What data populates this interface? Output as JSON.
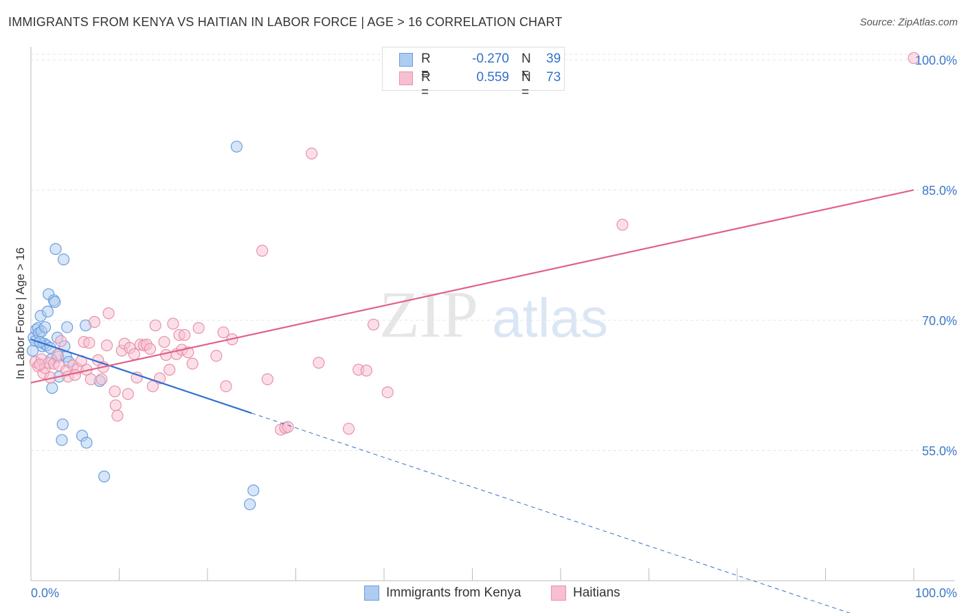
{
  "title": "IMMIGRANTS FROM KENYA VS HAITIAN IN LABOR FORCE | AGE > 16 CORRELATION CHART",
  "source": "Source: ZipAtlas.com",
  "legend": {
    "rows": [
      {
        "r_label": "R =",
        "r_value": "-0.270",
        "n_label": "N =",
        "n_value": "39"
      },
      {
        "r_label": "R =",
        "r_value": "0.559",
        "n_label": "N =",
        "n_value": "73"
      }
    ]
  },
  "bottom_legend": {
    "kenya": "Immigrants from Kenya",
    "haitians": "Haitians"
  },
  "watermark": {
    "zip": "ZIP",
    "atlas": "atlas"
  },
  "colors": {
    "kenya_fill": "#aecbf0",
    "kenya_stroke": "#6a9ee0",
    "kenya_line": "#2f6fcf",
    "haiti_fill": "#f7bfd0",
    "haiti_stroke": "#e890ab",
    "haiti_line": "#e0608a",
    "axis_label": "#3a78c8",
    "grid": "#e3e3e3"
  },
  "chart_data": {
    "type": "scatter",
    "title": "IMMIGRANTS FROM KENYA VS HAITIAN IN LABOR FORCE | AGE > 16 CORRELATION CHART",
    "xlabel": "",
    "ylabel": "In Labor Force | Age > 16",
    "xlim": [
      0,
      100
    ],
    "ylim": [
      40,
      101.5
    ],
    "x_tick_labels": [
      "0.0%",
      "100.0%"
    ],
    "y_ticks": [
      55,
      70,
      85,
      100
    ],
    "y_tick_labels": [
      "55.0%",
      "70.0%",
      "85.0%",
      "100.0%"
    ],
    "series": [
      {
        "name": "Immigrants from Kenya",
        "R": -0.27,
        "N": 39,
        "trend": {
          "x0": 0,
          "y0": 67.8,
          "x1": 25,
          "y1": 59.3,
          "dash_to_x": 100
        },
        "points": [
          [
            0.3,
            68.0
          ],
          [
            0.5,
            67.6
          ],
          [
            0.6,
            68.9
          ],
          [
            0.8,
            69.1
          ],
          [
            0.9,
            68.5
          ],
          [
            1.1,
            70.5
          ],
          [
            1.2,
            68.7
          ],
          [
            1.3,
            67.0
          ],
          [
            1.5,
            67.3
          ],
          [
            1.6,
            69.2
          ],
          [
            1.8,
            67.1
          ],
          [
            1.9,
            71.0
          ],
          [
            2.0,
            73.0
          ],
          [
            2.2,
            66.8
          ],
          [
            2.4,
            62.2
          ],
          [
            2.6,
            72.3
          ],
          [
            2.7,
            72.1
          ],
          [
            2.8,
            78.2
          ],
          [
            3.0,
            68.0
          ],
          [
            3.1,
            65.8
          ],
          [
            3.2,
            63.5
          ],
          [
            3.5,
            56.2
          ],
          [
            3.6,
            58.0
          ],
          [
            3.7,
            77.0
          ],
          [
            3.8,
            67.0
          ],
          [
            4.0,
            65.8
          ],
          [
            4.1,
            69.2
          ],
          [
            4.3,
            65.2
          ],
          [
            5.8,
            56.7
          ],
          [
            6.2,
            69.4
          ],
          [
            6.3,
            55.9
          ],
          [
            7.8,
            63.0
          ],
          [
            8.3,
            52.0
          ],
          [
            23.3,
            90.0
          ],
          [
            24.8,
            48.8
          ],
          [
            25.2,
            50.4
          ],
          [
            0.2,
            66.5
          ],
          [
            1.0,
            67.5
          ],
          [
            2.3,
            65.5
          ]
        ]
      },
      {
        "name": "Haitians",
        "R": 0.559,
        "N": 73,
        "trend": {
          "x0": 0,
          "y0": 62.8,
          "x1": 100,
          "y1": 85.0
        },
        "points": [
          [
            0.5,
            65.2
          ],
          [
            0.8,
            64.7
          ],
          [
            1.2,
            65.5
          ],
          [
            1.4,
            63.9
          ],
          [
            1.6,
            64.5
          ],
          [
            2.0,
            65.1
          ],
          [
            2.2,
            63.4
          ],
          [
            2.6,
            65.0
          ],
          [
            3.2,
            64.8
          ],
          [
            3.4,
            67.6
          ],
          [
            4.0,
            64.2
          ],
          [
            4.2,
            63.5
          ],
          [
            4.8,
            64.8
          ],
          [
            5.3,
            64.4
          ],
          [
            5.7,
            65.3
          ],
          [
            6.0,
            67.5
          ],
          [
            6.3,
            64.3
          ],
          [
            6.6,
            67.4
          ],
          [
            6.8,
            63.2
          ],
          [
            7.2,
            69.8
          ],
          [
            7.6,
            65.4
          ],
          [
            8.0,
            63.2
          ],
          [
            8.2,
            64.6
          ],
          [
            8.6,
            67.1
          ],
          [
            8.8,
            70.8
          ],
          [
            9.5,
            61.8
          ],
          [
            9.6,
            60.2
          ],
          [
            9.8,
            59.0
          ],
          [
            10.3,
            66.5
          ],
          [
            10.6,
            67.3
          ],
          [
            11.0,
            61.5
          ],
          [
            11.2,
            66.8
          ],
          [
            11.7,
            66.1
          ],
          [
            12.0,
            63.4
          ],
          [
            12.4,
            67.2
          ],
          [
            12.8,
            67.1
          ],
          [
            13.1,
            67.2
          ],
          [
            13.5,
            66.7
          ],
          [
            13.8,
            62.4
          ],
          [
            14.1,
            69.4
          ],
          [
            14.6,
            63.3
          ],
          [
            15.1,
            67.5
          ],
          [
            15.3,
            66.0
          ],
          [
            15.7,
            64.3
          ],
          [
            16.1,
            69.6
          ],
          [
            16.5,
            66.1
          ],
          [
            16.8,
            68.3
          ],
          [
            17.1,
            66.6
          ],
          [
            17.4,
            68.3
          ],
          [
            17.8,
            66.3
          ],
          [
            18.3,
            65.0
          ],
          [
            19.0,
            69.1
          ],
          [
            21.0,
            65.9
          ],
          [
            21.8,
            68.6
          ],
          [
            22.1,
            62.4
          ],
          [
            22.8,
            67.8
          ],
          [
            26.2,
            78.0
          ],
          [
            26.8,
            63.2
          ],
          [
            28.3,
            57.4
          ],
          [
            28.8,
            57.6
          ],
          [
            29.1,
            57.7
          ],
          [
            31.8,
            89.2
          ],
          [
            32.6,
            65.1
          ],
          [
            36.0,
            57.5
          ],
          [
            37.1,
            64.3
          ],
          [
            38.0,
            64.2
          ],
          [
            38.8,
            69.5
          ],
          [
            40.4,
            61.7
          ],
          [
            67.0,
            81.0
          ],
          [
            100.0,
            100.2
          ],
          [
            1.0,
            64.9
          ],
          [
            3.0,
            66.0
          ],
          [
            5.0,
            63.7
          ]
        ]
      }
    ]
  }
}
